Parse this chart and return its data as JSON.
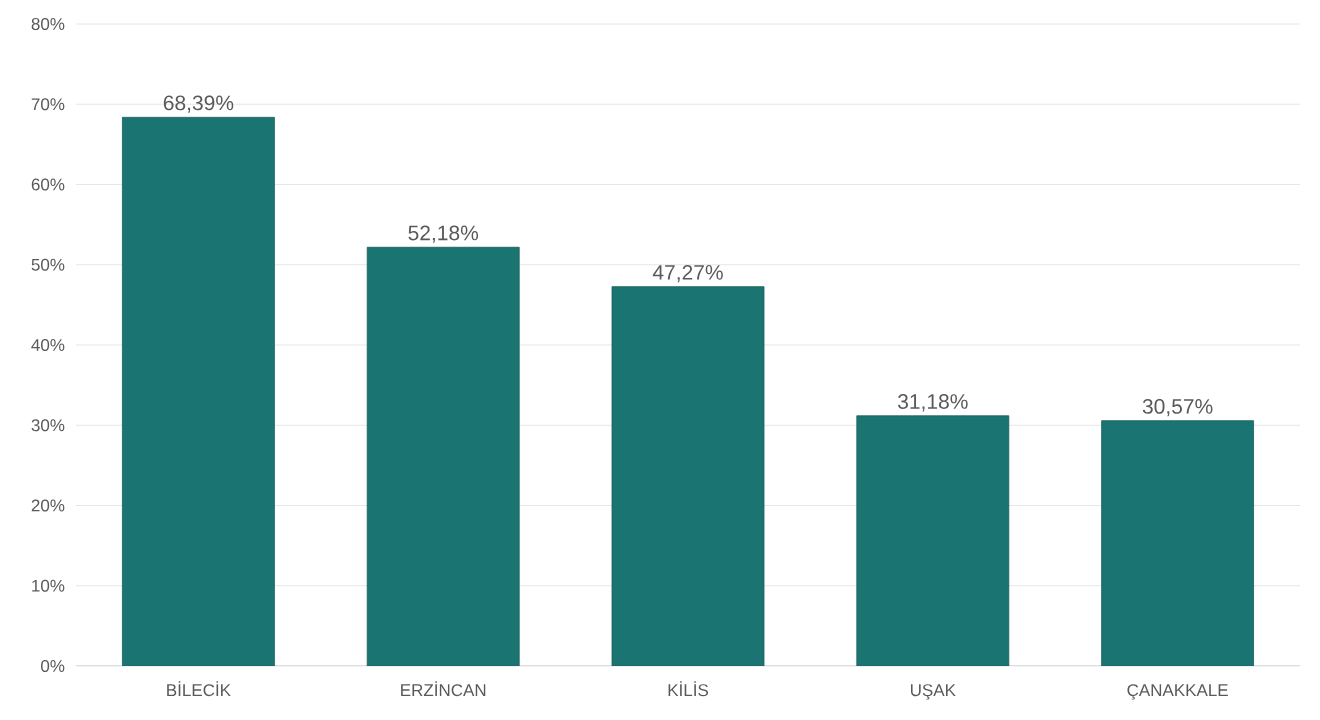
{
  "chart_data": {
    "type": "bar",
    "categories": [
      "BİLECİK",
      "ERZİNCAN",
      "KİLİS",
      "UŞAK",
      "ÇANAKKALE"
    ],
    "values": [
      68.39,
      52.18,
      47.27,
      31.18,
      30.57
    ],
    "value_labels": [
      "68,39%",
      "52,18%",
      "47,27%",
      "31,18%",
      "30,57%"
    ],
    "color": "#1a7572",
    "ylim": [
      0,
      80
    ],
    "yticks": [
      {
        "value": 0,
        "label": "0%"
      },
      {
        "value": 10,
        "label": "10%"
      },
      {
        "value": 20,
        "label": "20%"
      },
      {
        "value": 30,
        "label": "30%"
      },
      {
        "value": 40,
        "label": "40%"
      },
      {
        "value": 50,
        "label": "50%"
      },
      {
        "value": 60,
        "label": "60%"
      },
      {
        "value": 70,
        "label": "70%"
      },
      {
        "value": 80,
        "label": "80%"
      }
    ],
    "grid": "y"
  }
}
